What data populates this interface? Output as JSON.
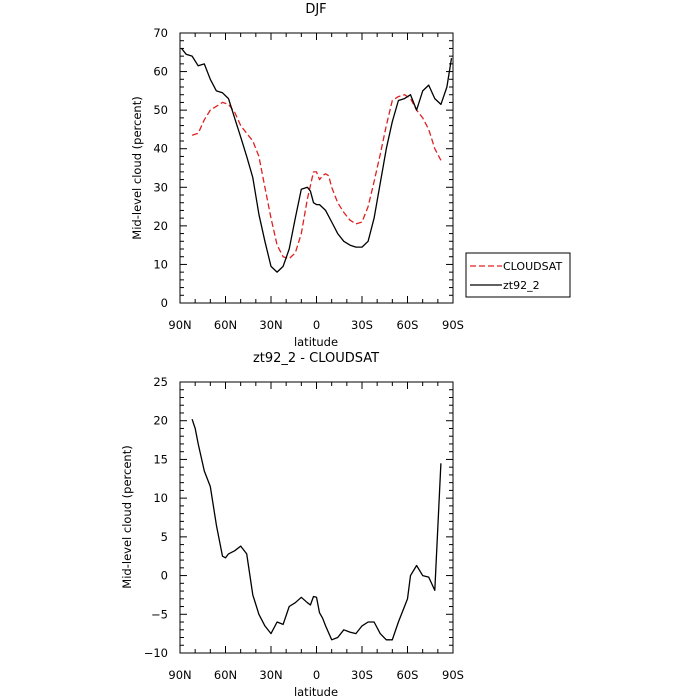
{
  "chart_data": [
    {
      "type": "line",
      "title": "DJF",
      "xlabel": "latitude",
      "ylabel": "Mid-level cloud (percent)",
      "xlim": [
        90,
        -90
      ],
      "ylim": [
        0,
        70
      ],
      "xticks": [
        90,
        60,
        30,
        0,
        -30,
        -60,
        -90
      ],
      "xtick_labels": [
        "90N",
        "60N",
        "30N",
        "0",
        "30S",
        "60S",
        "90S"
      ],
      "yticks": [
        0,
        10,
        20,
        30,
        40,
        50,
        60,
        70
      ],
      "ytick_labels": [
        "0",
        "10",
        "20",
        "30",
        "40",
        "50",
        "60",
        "70"
      ],
      "legend_position": "right, outside plot",
      "series": [
        {
          "name": "CLOUDSAT",
          "color": "#e02020",
          "style": "dashed",
          "x": [
            82,
            78,
            74,
            70,
            66,
            62,
            58,
            54,
            50,
            46,
            42,
            38,
            34,
            30,
            26,
            22,
            18,
            14,
            10,
            6,
            2,
            0,
            -2,
            -4,
            -6,
            -8,
            -10,
            -14,
            -18,
            -22,
            -26,
            -30,
            -34,
            -38,
            -42,
            -46,
            -50,
            -54,
            -58,
            -62,
            -66,
            -70,
            -74,
            -78,
            -82
          ],
          "y": [
            43.5,
            44,
            47.5,
            50,
            51,
            52,
            51.5,
            49.5,
            46,
            44,
            42,
            38,
            30,
            22,
            15,
            12,
            11.5,
            13,
            18,
            27,
            34,
            34,
            32,
            33,
            33.5,
            33,
            30,
            26,
            23.5,
            21.5,
            20.5,
            21,
            25,
            31.5,
            38.5,
            46,
            52.5,
            53.5,
            54,
            53,
            50,
            48,
            45,
            40,
            37
          ]
        },
        {
          "name": "zt92_2",
          "color": "#000000",
          "style": "solid",
          "x": [
            89,
            86,
            82,
            78,
            74,
            70,
            66,
            62,
            58,
            54,
            50,
            46,
            42,
            38,
            34,
            30,
            26,
            22,
            18,
            14,
            10,
            6,
            4,
            2,
            0,
            -2,
            -6,
            -10,
            -14,
            -18,
            -22,
            -26,
            -30,
            -34,
            -38,
            -42,
            -46,
            -50,
            -54,
            -58,
            -62,
            -66,
            -70,
            -74,
            -78,
            -82,
            -86,
            -89
          ],
          "y": [
            66,
            64.5,
            64,
            61.5,
            62,
            58,
            55,
            54.5,
            53,
            48,
            43,
            38,
            32.5,
            23,
            16,
            9.5,
            8,
            9.5,
            14,
            22,
            29.5,
            30,
            29,
            26,
            25.5,
            25.5,
            24,
            21,
            18,
            16,
            15,
            14.5,
            14.5,
            16,
            22,
            31,
            40,
            47,
            52.5,
            53,
            54,
            50,
            55,
            56.5,
            53,
            51.5,
            56,
            63.5
          ]
        }
      ]
    },
    {
      "type": "line",
      "title": "zt92_2 - CLOUDSAT",
      "xlabel": "latitude",
      "ylabel": "Mid-level cloud (percent)",
      "xlim": [
        90,
        -90
      ],
      "ylim": [
        -10,
        25
      ],
      "xticks": [
        90,
        60,
        30,
        0,
        -30,
        -60,
        -90
      ],
      "xtick_labels": [
        "90N",
        "60N",
        "30N",
        "0",
        "30S",
        "60S",
        "90S"
      ],
      "yticks": [
        -10,
        -5,
        0,
        5,
        10,
        15,
        20,
        25
      ],
      "ytick_labels": [
        "−10",
        "−5",
        "0",
        "5",
        "10",
        "15",
        "20",
        "25"
      ],
      "series": [
        {
          "color": "#000000",
          "style": "solid",
          "x": [
            82,
            80,
            78,
            74,
            70,
            66,
            62,
            60,
            58,
            54,
            50,
            46,
            42,
            38,
            34,
            30,
            26,
            22,
            18,
            14,
            10,
            6,
            4,
            2,
            0,
            -2,
            -4,
            -6,
            -10,
            -14,
            -18,
            -22,
            -26,
            -30,
            -34,
            -38,
            -42,
            -46,
            -50,
            -54,
            -58,
            -60,
            -62,
            -66,
            -70,
            -74,
            -78,
            -82
          ],
          "y": [
            20.2,
            19,
            17,
            13.5,
            11.5,
            6.5,
            2.5,
            2.3,
            2.8,
            3.2,
            3.8,
            2.8,
            -2.5,
            -5,
            -6.5,
            -7.5,
            -6,
            -6.3,
            -4,
            -3.5,
            -2.8,
            -3.5,
            -3.8,
            -2.7,
            -2.8,
            -4.8,
            -5.5,
            -6.5,
            -8.3,
            -8,
            -7,
            -7.3,
            -7.5,
            -6.5,
            -6,
            -6,
            -7.5,
            -8.3,
            -8.3,
            -6,
            -4,
            -3,
            0,
            1.3,
            0,
            -0.2,
            -1.9,
            14.5
          ]
        }
      ]
    }
  ]
}
